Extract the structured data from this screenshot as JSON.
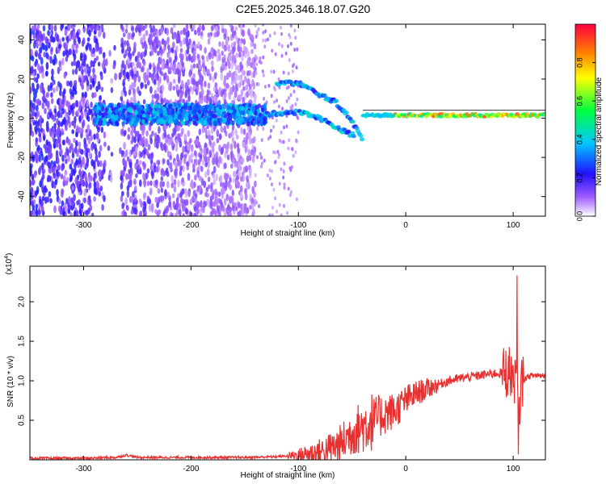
{
  "figure_title": "C2E5.2025.346.18.07.G20",
  "chart_data": [
    {
      "type": "heatmap",
      "xlabel": "Height of straight line (km)",
      "ylabel": "Frequency (Hz)",
      "xlim": [
        -350,
        130
      ],
      "ylim": [
        -50,
        48
      ],
      "x_ticks": [
        -300,
        -200,
        -100,
        0,
        100
      ],
      "x_tick_labels": [
        "-300",
        "-200",
        "-100",
        "0",
        "100"
      ],
      "y_ticks": [
        -40,
        -20,
        0,
        20,
        40
      ],
      "y_tick_labels": [
        "-40",
        "-20",
        "0",
        "20",
        "40"
      ],
      "colorbar": {
        "label": "Normalized spectral amplitude",
        "range": [
          0,
          1
        ],
        "ticks": [
          0.0,
          0.2,
          0.4,
          0.6,
          0.8
        ],
        "tick_labels": [
          "0.0",
          "0.2",
          "0.4",
          "0.6",
          "0.8"
        ],
        "colormap": "rainbow"
      },
      "features": {
        "noise_region_x": [
          -350,
          -140
        ],
        "noise_gap_x": [
          -280,
          -265
        ],
        "main_tone_hz": 1.5,
        "main_tone_x": [
          -40,
          130
        ],
        "upper_branch": [
          [
            -120,
            18
          ],
          [
            -100,
            18
          ],
          [
            -80,
            12
          ],
          [
            -65,
            8
          ],
          [
            -55,
            2
          ],
          [
            -45,
            -6
          ],
          [
            -40,
            -12
          ]
        ],
        "lower_branch": [
          [
            -130,
            2
          ],
          [
            -110,
            3
          ],
          [
            -95,
            3
          ],
          [
            -80,
            0
          ],
          [
            -70,
            -3
          ],
          [
            -60,
            -6
          ],
          [
            -48,
            -9
          ]
        ]
      }
    },
    {
      "type": "line",
      "xlabel": "Height of straight line (km)",
      "ylabel": "SNR (10 * v/v)",
      "y_multiplier_label": "(x10",
      "y_multiplier_exp": "4",
      "xlim": [
        -350,
        130
      ],
      "ylim": [
        0,
        2.45
      ],
      "x_ticks": [
        -300,
        -200,
        -100,
        0,
        100
      ],
      "x_tick_labels": [
        "-300",
        "-200",
        "-100",
        "0",
        "100"
      ],
      "y_ticks": [
        0.5,
        1.0,
        1.5,
        2.0
      ],
      "y_tick_labels": [
        "0.5",
        "1.0",
        "1.5",
        "2.0"
      ],
      "series": [
        {
          "color": "#e83030",
          "x": [
            -350,
            -300,
            -270,
            -260,
            -250,
            -200,
            -150,
            -120,
            -100,
            -90,
            -80,
            -70,
            -60,
            -50,
            -40,
            -30,
            -20,
            -10,
            0,
            10,
            20,
            30,
            40,
            50,
            60,
            70,
            80,
            90,
            95,
            100,
            103,
            105,
            107,
            110,
            115,
            120,
            130
          ],
          "values": [
            0.02,
            0.02,
            0.03,
            0.06,
            0.03,
            0.03,
            0.03,
            0.04,
            0.06,
            0.08,
            0.1,
            0.14,
            0.2,
            0.35,
            0.42,
            0.5,
            0.58,
            0.62,
            0.75,
            0.84,
            0.9,
            0.95,
            1.0,
            1.03,
            1.05,
            1.07,
            1.09,
            1.1,
            1.12,
            1.1,
            1.0,
            0.35,
            0.95,
            1.02,
            1.06,
            1.07,
            1.07
          ]
        }
      ]
    }
  ]
}
